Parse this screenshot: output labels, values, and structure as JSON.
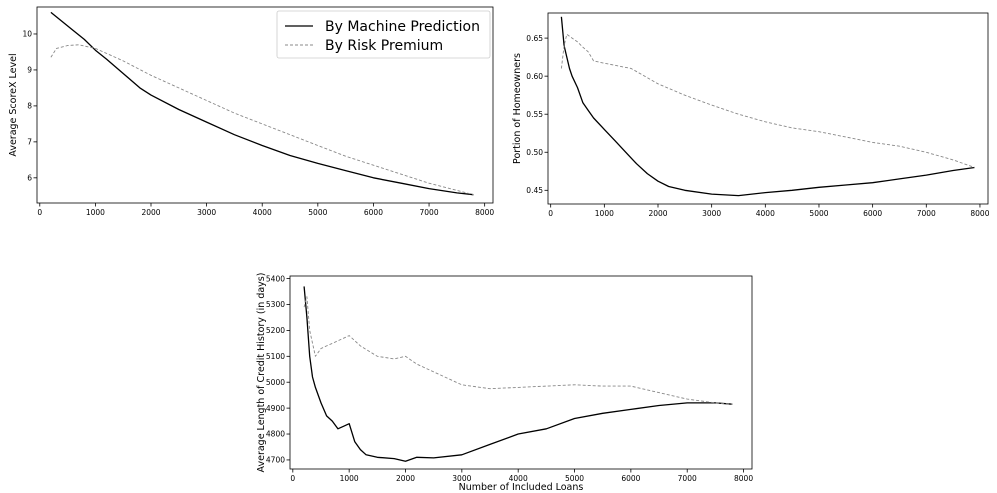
{
  "chart_data": [
    {
      "type": "line",
      "ylabel": "Average ScoreX Level",
      "xlabel": "",
      "xlim": [
        -50,
        8150
      ],
      "ylim": [
        5.3,
        10.75
      ],
      "xticks": [
        "0",
        "1000",
        "2000",
        "3000",
        "4000",
        "5000",
        "6000",
        "7000",
        "8000"
      ],
      "yticks": [
        "6",
        "7",
        "8",
        "9",
        "10"
      ],
      "legend": {
        "placement": "top-right",
        "entries": [
          "By Machine Prediction",
          "By Risk Premium"
        ]
      },
      "series": [
        {
          "name": "By Machine Prediction",
          "color": "#000000",
          "style": "solid",
          "points": [
            [
              200,
              10.6
            ],
            [
              400,
              10.35
            ],
            [
              600,
              10.1
            ],
            [
              800,
              9.85
            ],
            [
              1000,
              9.55
            ],
            [
              1200,
              9.3
            ],
            [
              1500,
              8.9
            ],
            [
              1800,
              8.5
            ],
            [
              2000,
              8.3
            ],
            [
              2500,
              7.9
            ],
            [
              3000,
              7.55
            ],
            [
              3500,
              7.2
            ],
            [
              4000,
              6.9
            ],
            [
              4500,
              6.62
            ],
            [
              5000,
              6.4
            ],
            [
              5500,
              6.2
            ],
            [
              6000,
              6.0
            ],
            [
              6500,
              5.85
            ],
            [
              7000,
              5.7
            ],
            [
              7500,
              5.58
            ],
            [
              7800,
              5.53
            ]
          ]
        },
        {
          "name": "By Risk Premium",
          "color": "#888888",
          "style": "dashed",
          "points": [
            [
              200,
              9.35
            ],
            [
              300,
              9.6
            ],
            [
              500,
              9.68
            ],
            [
              700,
              9.7
            ],
            [
              1000,
              9.6
            ],
            [
              1500,
              9.25
            ],
            [
              2000,
              8.85
            ],
            [
              2500,
              8.5
            ],
            [
              3000,
              8.15
            ],
            [
              3500,
              7.8
            ],
            [
              4000,
              7.5
            ],
            [
              4500,
              7.2
            ],
            [
              5000,
              6.9
            ],
            [
              5500,
              6.6
            ],
            [
              6000,
              6.35
            ],
            [
              6500,
              6.1
            ],
            [
              7000,
              5.85
            ],
            [
              7500,
              5.65
            ],
            [
              7800,
              5.53
            ]
          ]
        }
      ]
    },
    {
      "type": "line",
      "ylabel": "Portion of Homeowners",
      "xlabel": "",
      "xlim": [
        -50,
        8150
      ],
      "ylim": [
        0.432,
        0.683
      ],
      "xticks": [
        "0",
        "1000",
        "2000",
        "3000",
        "4000",
        "5000",
        "6000",
        "7000",
        "8000"
      ],
      "yticks": [
        "0.45",
        "0.50",
        "0.55",
        "0.60",
        "0.65"
      ],
      "series": [
        {
          "name": "By Machine Prediction",
          "color": "#000000",
          "style": "solid",
          "points": [
            [
              200,
              0.678
            ],
            [
              250,
              0.64
            ],
            [
              300,
              0.625
            ],
            [
              350,
              0.61
            ],
            [
              400,
              0.6
            ],
            [
              500,
              0.585
            ],
            [
              600,
              0.565
            ],
            [
              700,
              0.555
            ],
            [
              800,
              0.545
            ],
            [
              1000,
              0.53
            ],
            [
              1200,
              0.515
            ],
            [
              1400,
              0.5
            ],
            [
              1600,
              0.485
            ],
            [
              1800,
              0.472
            ],
            [
              2000,
              0.462
            ],
            [
              2200,
              0.455
            ],
            [
              2500,
              0.45
            ],
            [
              3000,
              0.445
            ],
            [
              3500,
              0.443
            ],
            [
              4000,
              0.447
            ],
            [
              4500,
              0.45
            ],
            [
              5000,
              0.454
            ],
            [
              5500,
              0.457
            ],
            [
              6000,
              0.46
            ],
            [
              6500,
              0.465
            ],
            [
              7000,
              0.47
            ],
            [
              7500,
              0.476
            ],
            [
              7900,
              0.48
            ]
          ]
        },
        {
          "name": "By Risk Premium",
          "color": "#888888",
          "style": "dashed",
          "points": [
            [
              200,
              0.61
            ],
            [
              250,
              0.64
            ],
            [
              300,
              0.655
            ],
            [
              400,
              0.65
            ],
            [
              500,
              0.645
            ],
            [
              600,
              0.638
            ],
            [
              700,
              0.632
            ],
            [
              800,
              0.62
            ],
            [
              1000,
              0.617
            ],
            [
              1500,
              0.61
            ],
            [
              2000,
              0.59
            ],
            [
              2500,
              0.575
            ],
            [
              3000,
              0.562
            ],
            [
              3500,
              0.55
            ],
            [
              4000,
              0.54
            ],
            [
              4500,
              0.532
            ],
            [
              5000,
              0.527
            ],
            [
              5500,
              0.52
            ],
            [
              6000,
              0.513
            ],
            [
              6500,
              0.508
            ],
            [
              7000,
              0.5
            ],
            [
              7500,
              0.49
            ],
            [
              7900,
              0.48
            ]
          ]
        }
      ]
    },
    {
      "type": "line",
      "ylabel": "Average Length of Credit History (in days)",
      "xlabel": "Number of Included Loans",
      "xlim": [
        -50,
        8150
      ],
      "ylim": [
        4665,
        5410
      ],
      "xticks": [
        "0",
        "1000",
        "2000",
        "3000",
        "4000",
        "5000",
        "6000",
        "7000",
        "8000"
      ],
      "yticks": [
        "4700",
        "4800",
        "4900",
        "5000",
        "5100",
        "5200",
        "5300",
        "5400"
      ],
      "series": [
        {
          "name": "By Machine Prediction",
          "color": "#000000",
          "style": "solid",
          "points": [
            [
              200,
              5370
            ],
            [
              250,
              5250
            ],
            [
              300,
              5100
            ],
            [
              350,
              5020
            ],
            [
              400,
              4980
            ],
            [
              500,
              4920
            ],
            [
              600,
              4870
            ],
            [
              700,
              4850
            ],
            [
              800,
              4820
            ],
            [
              900,
              4830
            ],
            [
              1000,
              4840
            ],
            [
              1100,
              4770
            ],
            [
              1200,
              4740
            ],
            [
              1300,
              4720
            ],
            [
              1500,
              4710
            ],
            [
              1800,
              4705
            ],
            [
              2000,
              4695
            ],
            [
              2200,
              4710
            ],
            [
              2500,
              4708
            ],
            [
              3000,
              4720
            ],
            [
              3500,
              4760
            ],
            [
              4000,
              4800
            ],
            [
              4500,
              4820
            ],
            [
              5000,
              4860
            ],
            [
              5500,
              4880
            ],
            [
              6000,
              4895
            ],
            [
              6500,
              4910
            ],
            [
              7000,
              4920
            ],
            [
              7500,
              4920
            ],
            [
              7800,
              4915
            ]
          ]
        },
        {
          "name": "By Risk Premium",
          "color": "#888888",
          "style": "dashed",
          "points": [
            [
              200,
              5290
            ],
            [
              250,
              5330
            ],
            [
              300,
              5200
            ],
            [
              400,
              5100
            ],
            [
              500,
              5130
            ],
            [
              600,
              5140
            ],
            [
              700,
              5150
            ],
            [
              800,
              5160
            ],
            [
              1000,
              5180
            ],
            [
              1200,
              5140
            ],
            [
              1500,
              5100
            ],
            [
              1800,
              5090
            ],
            [
              2000,
              5100
            ],
            [
              2200,
              5070
            ],
            [
              2500,
              5040
            ],
            [
              3000,
              4990
            ],
            [
              3500,
              4975
            ],
            [
              4000,
              4980
            ],
            [
              4500,
              4985
            ],
            [
              5000,
              4990
            ],
            [
              5500,
              4985
            ],
            [
              6000,
              4985
            ],
            [
              6500,
              4960
            ],
            [
              7000,
              4935
            ],
            [
              7500,
              4920
            ],
            [
              7800,
              4915
            ]
          ]
        }
      ]
    }
  ]
}
